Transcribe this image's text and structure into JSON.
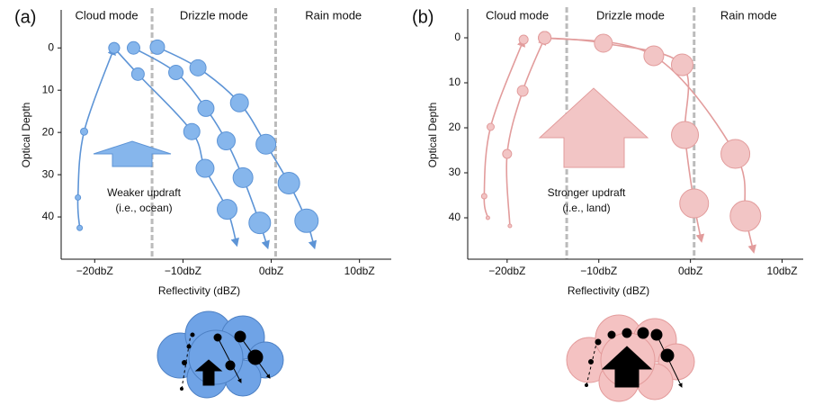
{
  "chart_data": [
    {
      "type": "scatter",
      "panel_label": "(a)",
      "mode_labels": [
        "Cloud mode",
        "Drizzle mode",
        "Rain mode"
      ],
      "mode_boundaries": [
        -13.5,
        0.5
      ],
      "xlabel": "Reflectivity (dBZ)",
      "ylabel": "Optical Depth",
      "annotation": [
        "Weaker updraft",
        "(i.e., ocean)"
      ],
      "xlim": [
        -23.8,
        13.6
      ],
      "ylim": [
        -9,
        50
      ],
      "y_inverted": true,
      "xticks": [
        {
          "value": -20,
          "label": "−20dbZ"
        },
        {
          "value": -10,
          "label": "−10dbZ"
        },
        {
          "value": 0,
          "label": "0dbZ"
        },
        {
          "value": 10,
          "label": "10dbZ"
        }
      ],
      "yticks": [
        0,
        10,
        20,
        30,
        40
      ],
      "color": "#86b6ec",
      "line_color": "#5d94d6",
      "series": [
        {
          "x": [
            -21.7,
            -21.9,
            -21.2,
            -17.8
          ],
          "y": [
            42.6,
            35.4,
            19.8,
            0
          ],
          "sizes": [
            3,
            3,
            4,
            6
          ]
        },
        {
          "x": [
            -17.8,
            -15.1,
            -9,
            -7.5,
            -5,
            -3.9
          ],
          "y": [
            0,
            6.2,
            19.8,
            28.5,
            38.2,
            46.7
          ],
          "sizes": [
            6,
            7,
            9,
            10,
            11,
            null
          ]
        },
        {
          "x": [
            -15.6,
            -10.8,
            -7.4,
            -5.1,
            -3.2,
            -1.3,
            -0.4
          ],
          "y": [
            0,
            5.8,
            14.3,
            22,
            30.7,
            41.4,
            47.3
          ],
          "sizes": [
            7,
            8,
            9,
            10,
            11,
            12,
            null
          ]
        },
        {
          "x": [
            -12.9,
            -8.3,
            -3.6,
            -0.6,
            2,
            4,
            4.9
          ],
          "y": [
            -0.2,
            4.7,
            13,
            22.8,
            32,
            40.9,
            47.3
          ],
          "sizes": [
            8,
            9,
            10,
            11,
            12,
            13,
            null
          ]
        }
      ]
    },
    {
      "type": "scatter",
      "panel_label": "(b)",
      "mode_labels": [
        "Cloud mode",
        "Drizzle mode",
        "Rain mode"
      ],
      "mode_boundaries": [
        -13.5,
        0.4
      ],
      "xlabel": "Reflectivity (dBZ)",
      "ylabel": "Optical Depth",
      "annotation": [
        "Stronger updraft",
        "(i.e., land)"
      ],
      "xlim": [
        -24.3,
        12.3
      ],
      "ylim": [
        -6.4,
        49.2
      ],
      "y_inverted": true,
      "xticks": [
        {
          "value": -20,
          "label": "−20dbZ"
        },
        {
          "value": -10,
          "label": "−10dbZ"
        },
        {
          "value": 0,
          "label": "0dbZ"
        },
        {
          "value": 10,
          "label": "10dbZ"
        }
      ],
      "yticks": [
        0,
        10,
        20,
        30,
        40
      ],
      "color": "#f2c5c5",
      "line_color": "#e29c9c",
      "series": [
        {
          "x": [
            -22.1,
            -22.5,
            -21.8,
            -18.2
          ],
          "y": [
            40,
            35.2,
            19.8,
            0.4
          ],
          "sizes": [
            2,
            3,
            4,
            5
          ]
        },
        {
          "x": [
            -19.7,
            -20,
            -18.3,
            -15.9
          ],
          "y": [
            41.8,
            25.8,
            11.8,
            0
          ],
          "sizes": [
            2,
            5,
            6,
            7
          ]
        },
        {
          "x": [
            -15.9,
            -9.5,
            -0.9,
            -0.6,
            0.4,
            1.2
          ],
          "y": [
            0,
            1.2,
            6,
            21.6,
            36.8,
            45.2
          ],
          "sizes": [
            7,
            10,
            12,
            15,
            16,
            null
          ]
        },
        {
          "x": [
            -15.9,
            -4,
            4.9,
            6,
            6.9
          ],
          "y": [
            0,
            4,
            25.8,
            39.6,
            47.6
          ],
          "sizes": [
            7,
            11,
            16,
            17,
            null
          ]
        }
      ]
    }
  ]
}
